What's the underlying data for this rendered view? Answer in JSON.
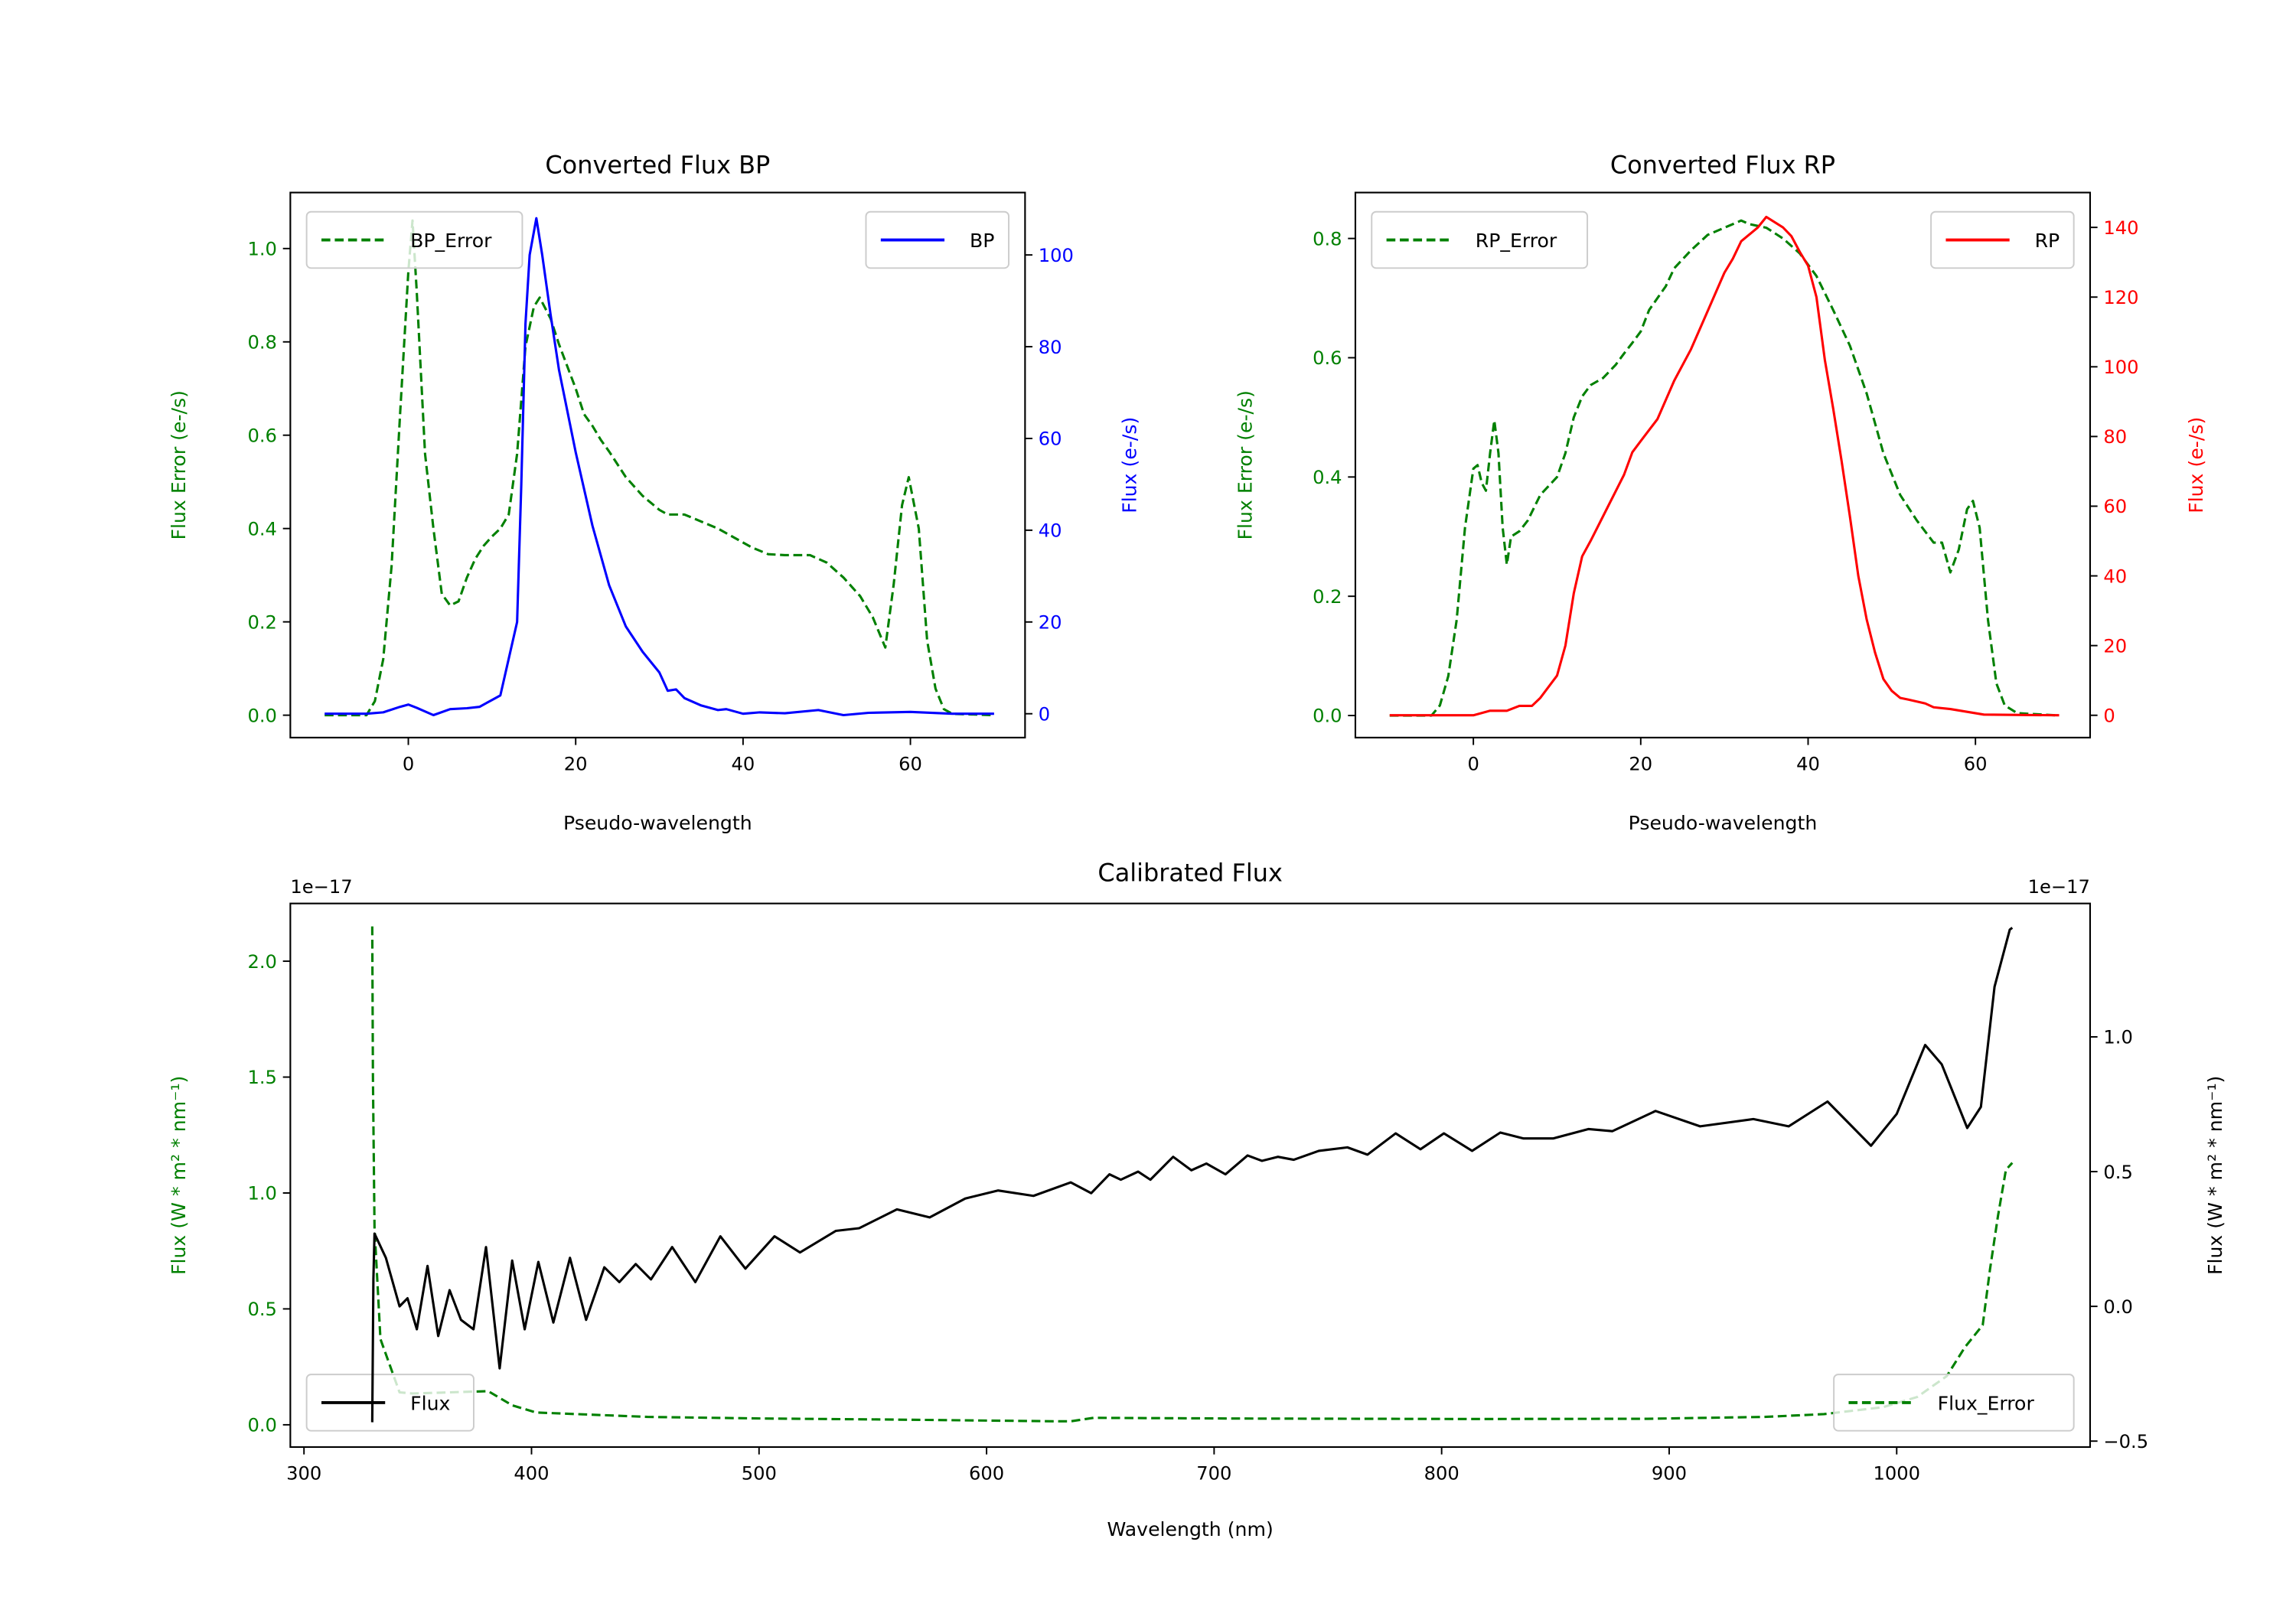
{
  "chart_data": [
    {
      "type": "line",
      "title": "Converted Flux BP",
      "xlabel": "Pseudo-wavelength",
      "ylabel_left": "Flux Error (e-/s)",
      "ylabel_right": "Flux (e-/s)",
      "xlim": [
        -14.1,
        73.7
      ],
      "ylim_left": [
        -0.048,
        1.12
      ],
      "ylim_right": [
        -5.2,
        113.6
      ],
      "xticks": [
        0,
        20,
        40,
        60
      ],
      "xtick_labels": [
        "0",
        "20",
        "40",
        "60"
      ],
      "yticks_left": [
        0,
        0.2,
        0.4,
        0.6,
        0.8,
        1.0
      ],
      "ytick_labels_left": [
        "0.0",
        "0.2",
        "0.4",
        "0.6",
        "0.8",
        "1.0"
      ],
      "yticks_right": [
        0,
        20,
        40,
        60,
        80,
        100
      ],
      "ytick_labels_right": [
        "0",
        "20",
        "40",
        "60",
        "80",
        "100"
      ],
      "left_color": "#008000",
      "right_color": "#0000ff",
      "grid": false,
      "series": [
        {
          "name": "BP_Error",
          "axis": "left",
          "color": "#008000",
          "dashed": true,
          "legend": "upper-left",
          "x": [
            -10,
            -5,
            -4,
            -3,
            -2,
            -1,
            0,
            0.5,
            1,
            2,
            3,
            4,
            5,
            6,
            7,
            8,
            9,
            10,
            11,
            12,
            13,
            14,
            15,
            15.7,
            17,
            18,
            20,
            21,
            22,
            23,
            24,
            26,
            28,
            30,
            31,
            33,
            35,
            37,
            39,
            41,
            43,
            45,
            48,
            50,
            52,
            54,
            55.5,
            57,
            58,
            59,
            59.8,
            61,
            62,
            63,
            64,
            65,
            70
          ],
          "y": [
            0,
            0,
            0.03,
            0.12,
            0.32,
            0.64,
            0.95,
            1.06,
            0.91,
            0.56,
            0.4,
            0.26,
            0.235,
            0.244,
            0.295,
            0.335,
            0.363,
            0.383,
            0.4,
            0.43,
            0.56,
            0.79,
            0.875,
            0.895,
            0.85,
            0.795,
            0.7,
            0.645,
            0.62,
            0.59,
            0.565,
            0.51,
            0.47,
            0.44,
            0.43,
            0.43,
            0.415,
            0.4,
            0.38,
            0.36,
            0.345,
            0.343,
            0.343,
            0.327,
            0.295,
            0.255,
            0.21,
            0.145,
            0.28,
            0.45,
            0.51,
            0.4,
            0.16,
            0.057,
            0.013,
            0.003,
            0
          ]
        },
        {
          "name": "BP",
          "axis": "right",
          "color": "#0000ff",
          "dashed": false,
          "legend": "upper-right",
          "x": [
            -10,
            -5,
            -3,
            -1,
            0,
            1,
            3,
            5,
            7,
            8.5,
            10,
            11,
            12,
            13,
            13.5,
            14,
            14.5,
            15.3,
            16,
            17,
            18,
            20,
            22,
            24,
            26,
            28,
            30,
            31,
            32,
            33,
            35,
            37,
            38,
            40,
            42,
            45,
            49,
            52,
            55,
            60,
            65,
            70
          ],
          "y": [
            0,
            0,
            0.3,
            1.5,
            2,
            1.3,
            -0.3,
            1,
            1.2,
            1.5,
            3,
            4,
            12,
            20,
            50,
            85,
            100,
            108,
            100,
            87,
            75,
            57,
            41,
            28,
            19,
            13.5,
            9,
            5,
            5.3,
            3.4,
            1.8,
            0.8,
            1,
            0,
            0.3,
            0.1,
            0.8,
            -0.3,
            0.2,
            0.4,
            0,
            0
          ]
        }
      ]
    },
    {
      "type": "line",
      "title": "Converted Flux RP",
      "xlabel": "Pseudo-wavelength",
      "ylabel_left": "Flux Error (e-/s)",
      "ylabel_right": "Flux (e-/s)",
      "xlim": [
        -14.1,
        73.7
      ],
      "ylim_left": [
        -0.037,
        0.877
      ],
      "ylim_right": [
        -6.4,
        150
      ],
      "xticks": [
        0,
        20,
        40,
        60
      ],
      "xtick_labels": [
        "0",
        "20",
        "40",
        "60"
      ],
      "yticks_left": [
        0,
        0.2,
        0.4,
        0.6,
        0.8
      ],
      "ytick_labels_left": [
        "0.0",
        "0.2",
        "0.4",
        "0.6",
        "0.8"
      ],
      "yticks_right": [
        0,
        20,
        40,
        60,
        80,
        100,
        120,
        140
      ],
      "ytick_labels_right": [
        "0",
        "20",
        "40",
        "60",
        "80",
        "100",
        "120",
        "140"
      ],
      "left_color": "#008000",
      "right_color": "#ff0000",
      "grid": false,
      "series": [
        {
          "name": "RP_Error",
          "axis": "left",
          "color": "#008000",
          "dashed": true,
          "legend": "upper-left",
          "x": [
            -10,
            -5,
            -4,
            -3,
            -2,
            -1,
            0,
            0.5,
            1,
            1.5,
            2,
            2.5,
            3,
            3.5,
            4,
            4.5,
            5.5,
            6.5,
            8,
            10,
            11,
            12,
            13,
            14,
            15.5,
            17,
            18,
            19,
            20,
            21,
            22,
            23,
            24,
            26,
            28,
            30,
            32,
            33,
            35,
            37,
            39,
            41,
            43,
            45,
            47,
            49,
            51,
            53,
            55,
            56,
            57,
            58,
            59,
            59.7,
            60.5,
            61.5,
            62.5,
            63.5,
            65,
            70
          ],
          "y": [
            0,
            0,
            0.017,
            0.066,
            0.16,
            0.315,
            0.414,
            0.42,
            0.39,
            0.377,
            0.44,
            0.495,
            0.44,
            0.315,
            0.253,
            0.3,
            0.309,
            0.327,
            0.37,
            0.4,
            0.44,
            0.5,
            0.535,
            0.554,
            0.566,
            0.588,
            0.607,
            0.625,
            0.644,
            0.68,
            0.7,
            0.72,
            0.75,
            0.78,
            0.806,
            0.818,
            0.83,
            0.824,
            0.818,
            0.8,
            0.775,
            0.737,
            0.68,
            0.62,
            0.54,
            0.44,
            0.37,
            0.327,
            0.29,
            0.29,
            0.24,
            0.278,
            0.346,
            0.36,
            0.315,
            0.16,
            0.054,
            0.017,
            0.004,
            0
          ]
        },
        {
          "name": "RP",
          "axis": "right",
          "color": "#ff0000",
          "dashed": false,
          "legend": "upper-right",
          "x": [
            -10,
            0,
            2,
            4,
            5.5,
            7,
            8,
            10,
            11,
            12,
            13,
            14,
            16,
            18,
            19,
            20,
            22,
            24,
            26,
            28,
            30,
            31,
            32,
            34,
            35,
            37,
            38,
            39,
            40,
            41,
            42,
            43,
            44,
            45,
            46,
            47,
            48,
            49,
            50,
            51,
            52,
            54,
            55,
            57,
            59,
            61,
            70
          ],
          "y": [
            0,
            0,
            1.3,
            1.3,
            2.7,
            2.7,
            5,
            11.4,
            20,
            35,
            45.6,
            50,
            59.5,
            69,
            75.5,
            78.7,
            85,
            96,
            105,
            116,
            127,
            131,
            136,
            140,
            143,
            140,
            137.5,
            133,
            129,
            120,
            102,
            88,
            73,
            57,
            40,
            27.5,
            18,
            10.4,
            7,
            5,
            4.5,
            3.4,
            2.3,
            1.8,
            1,
            0.2,
            0
          ]
        }
      ]
    },
    {
      "type": "line",
      "title": "Calibrated Flux",
      "xlabel": "Wavelength (nm)",
      "ylabel_left": "Flux (W * m² * nm⁻¹)",
      "ylabel_right": "Flux (W * m² * nm⁻¹)",
      "offset_left": "1e−17",
      "offset_right": "1e−17",
      "xlim": [
        294,
        1085
      ],
      "ylim_left": [
        -0.096,
        2.249
      ],
      "ylim_right": [
        -0.522,
        1.495
      ],
      "xticks": [
        300,
        400,
        500,
        600,
        700,
        800,
        900,
        1000
      ],
      "xtick_labels": [
        "300",
        "400",
        "500",
        "600",
        "700",
        "800",
        "900",
        "1000"
      ],
      "yticks_left": [
        0,
        0.5,
        1.0,
        1.5,
        2.0
      ],
      "ytick_labels_left": [
        "0.0",
        "0.5",
        "1.0",
        "1.5",
        "2.0"
      ],
      "yticks_right": [
        -0.5,
        0,
        0.5,
        1.0
      ],
      "ytick_labels_right": [
        "−0.5",
        "0.0",
        "0.5",
        "1.0"
      ],
      "left_color": "#008000",
      "right_color": "#000000",
      "grid": false,
      "series": [
        {
          "name": "Flux_Error",
          "axis": "left",
          "color": "#008000",
          "dashed": true,
          "legend": "lower-right",
          "x": [
            330,
            330.3,
            331,
            333.6,
            342,
            347.6,
            381,
            391.5,
            402,
            451,
            502.7,
            554,
            632,
            637,
            647,
            709.5,
            813,
            890.5,
            942,
            968,
            994,
            1009,
            1022,
            1030,
            1037.8,
            1041,
            1044.5,
            1048,
            1050.8
          ],
          "y": [
            2.15,
            1.5,
            0.85,
            0.37,
            0.14,
            0.135,
            0.145,
            0.084,
            0.053,
            0.034,
            0.027,
            0.023,
            0.015,
            0.015,
            0.03,
            0.027,
            0.025,
            0.026,
            0.034,
            0.046,
            0.076,
            0.12,
            0.21,
            0.335,
            0.43,
            0.67,
            0.9,
            1.1,
            1.13
          ]
        },
        {
          "name": "Flux",
          "axis": "right",
          "color": "#000000",
          "dashed": false,
          "legend": "lower-left",
          "x": [
            330,
            330.5,
            331,
            336,
            342,
            345.5,
            349.6,
            354.3,
            359,
            364,
            369,
            374.5,
            380,
            386,
            391.5,
            397,
            403,
            409.6,
            416.9,
            424,
            432,
            438.6,
            445.8,
            452.5,
            461.8,
            472,
            483,
            494,
            506.8,
            518,
            533.7,
            544,
            560.6,
            575,
            590.6,
            605,
            620.6,
            637,
            646,
            654,
            659,
            666.6,
            672,
            682,
            690,
            696.6,
            705,
            714.7,
            721,
            728,
            735,
            746,
            758.6,
            767.4,
            779.8,
            790.7,
            801,
            813.4,
            825.8,
            836,
            849,
            864.6,
            875,
            894,
            913.6,
            937,
            952.5,
            969.6,
            978,
            988.7,
            1000,
            1012.5,
            1019.8,
            1031,
            1037,
            1043,
            1049.7,
            1050.8
          ],
          "y": [
            -0.43,
            0.1,
            0.27,
            0.18,
            0.0,
            0.03,
            -0.085,
            0.15,
            -0.11,
            0.06,
            -0.05,
            -0.085,
            0.22,
            -0.23,
            0.17,
            -0.085,
            0.165,
            -0.06,
            0.18,
            -0.05,
            0.145,
            0.09,
            0.157,
            0.1,
            0.22,
            0.09,
            0.26,
            0.14,
            0.26,
            0.2,
            0.28,
            0.29,
            0.36,
            0.33,
            0.4,
            0.43,
            0.41,
            0.46,
            0.42,
            0.49,
            0.47,
            0.5,
            0.47,
            0.555,
            0.505,
            0.53,
            0.49,
            0.56,
            0.54,
            0.555,
            0.544,
            0.577,
            0.59,
            0.563,
            0.642,
            0.583,
            0.642,
            0.577,
            0.645,
            0.623,
            0.623,
            0.658,
            0.65,
            0.725,
            0.668,
            0.695,
            0.668,
            0.76,
            0.688,
            0.596,
            0.714,
            0.97,
            0.898,
            0.662,
            0.74,
            1.186,
            1.398,
            1.405
          ]
        }
      ]
    }
  ]
}
